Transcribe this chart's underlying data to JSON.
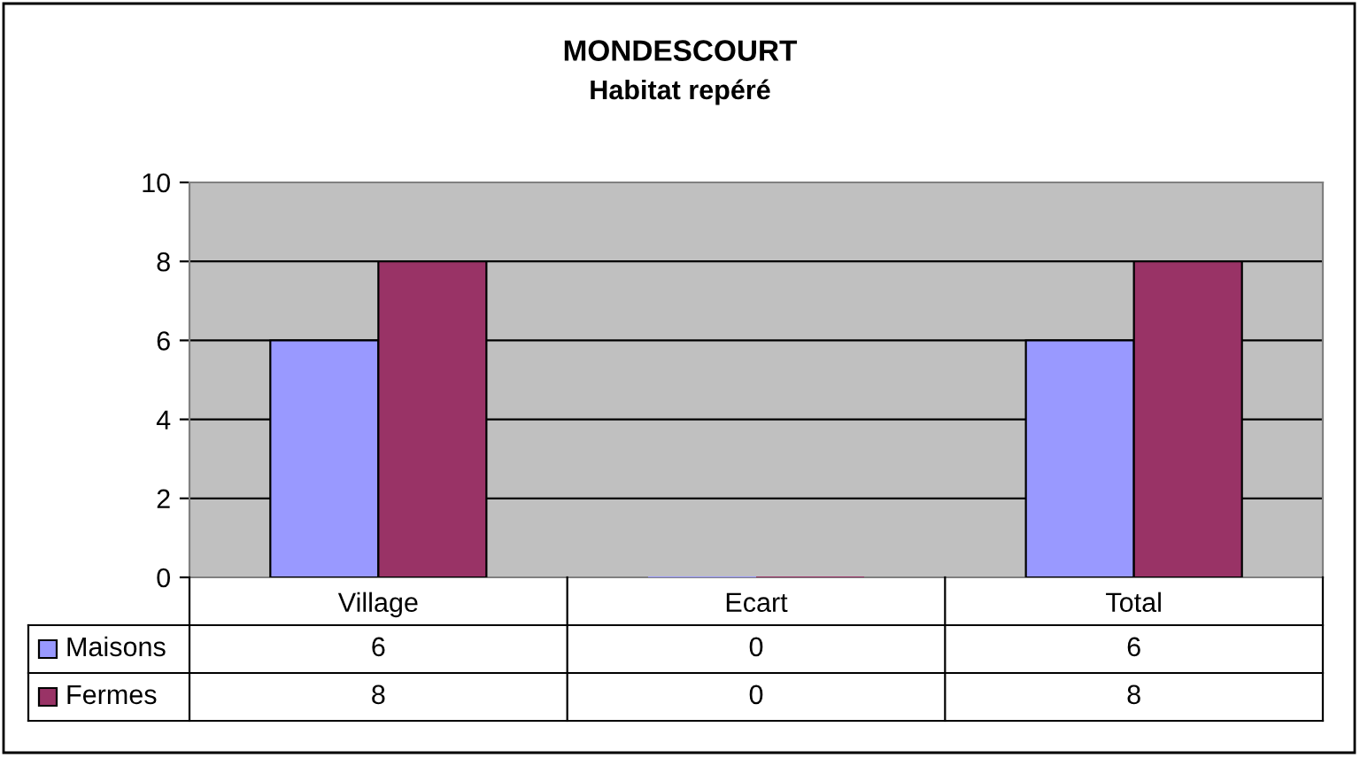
{
  "chart_data": {
    "type": "bar",
    "title": "MONDESCOURT",
    "subtitle": "Habitat repéré",
    "categories": [
      "Village",
      "Ecart",
      "Total"
    ],
    "series": [
      {
        "name": "Maisons",
        "color": "#9999ff",
        "values": [
          6,
          0,
          6
        ]
      },
      {
        "name": "Fermes",
        "color": "#993366",
        "values": [
          8,
          0,
          8
        ]
      }
    ],
    "ylim": [
      0,
      10
    ],
    "yticks": [
      0,
      2,
      4,
      6,
      8,
      10
    ],
    "grid": "y",
    "data_labels": true,
    "legend": "bottom"
  }
}
